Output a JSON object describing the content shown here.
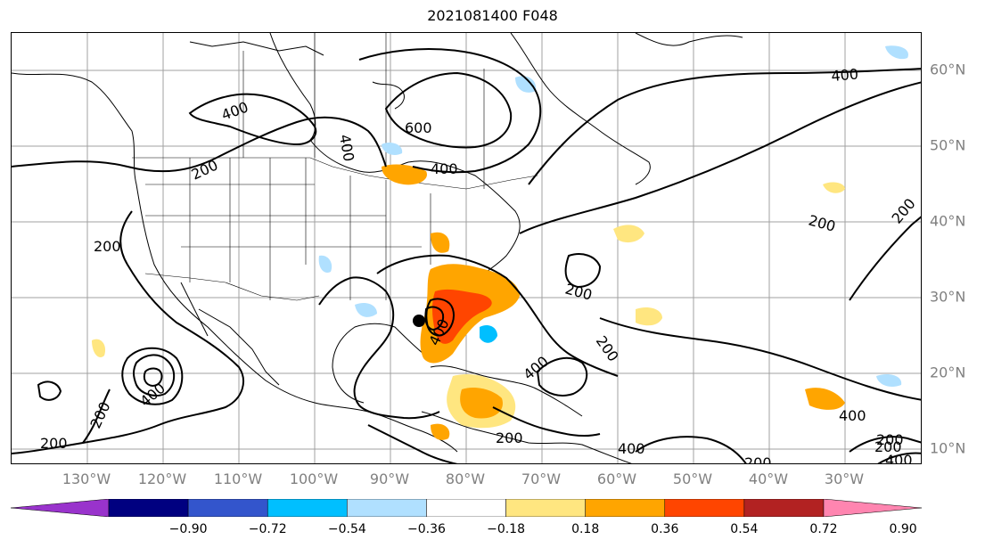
{
  "title": "2021081400 F048",
  "longitude_labels": [
    "130°W",
    "120°W",
    "110°W",
    "100°W",
    "90°W",
    "80°W",
    "70°W",
    "60°W",
    "50°W",
    "40°W",
    "30°W"
  ],
  "latitude_labels": [
    "60°N",
    "50°N",
    "40°N",
    "30°N",
    "20°N",
    "10°N"
  ],
  "contour_labels": {
    "c400_ne": "400",
    "c400_nw": "400",
    "c600": "600",
    "c400_gl": "400",
    "c400_glr": "400",
    "c200_w": "200",
    "c200_pac": "200",
    "c200_atl": "200",
    "c200_atl2": "200",
    "c200_mid": "200",
    "c200_mid2": "200",
    "c400_hurr": "400",
    "c200_hurr": "200",
    "c200_sw": "200",
    "c400_fl": "400",
    "c400_car": "400",
    "c200_car": "200",
    "c400_sa": "400",
    "c200_s": "200",
    "c400_atle": "400",
    "c200_se": "200",
    "c400_se": "400",
    "c200_e": "200"
  },
  "colorbar": {
    "ticks": [
      "−0.90",
      "−0.72",
      "−0.54",
      "−0.36",
      "−0.18",
      "0.18",
      "0.36",
      "0.54",
      "0.72",
      "0.90"
    ],
    "colors": [
      "#9933cc",
      "#000080",
      "#3355cc",
      "#00bfff",
      "#b0e0ff",
      "#ffffff",
      "#ffe680",
      "#ffa500",
      "#ff4500",
      "#b22222",
      "#ff85b0"
    ]
  },
  "colors": {
    "positive_light": "#ffe680",
    "positive_mid": "#ffa500",
    "positive_strong": "#ff4500",
    "negative_light": "#b0e0ff",
    "negative_mid": "#00bfff",
    "contour": "#000000",
    "grid": "#a0a0a0"
  }
}
